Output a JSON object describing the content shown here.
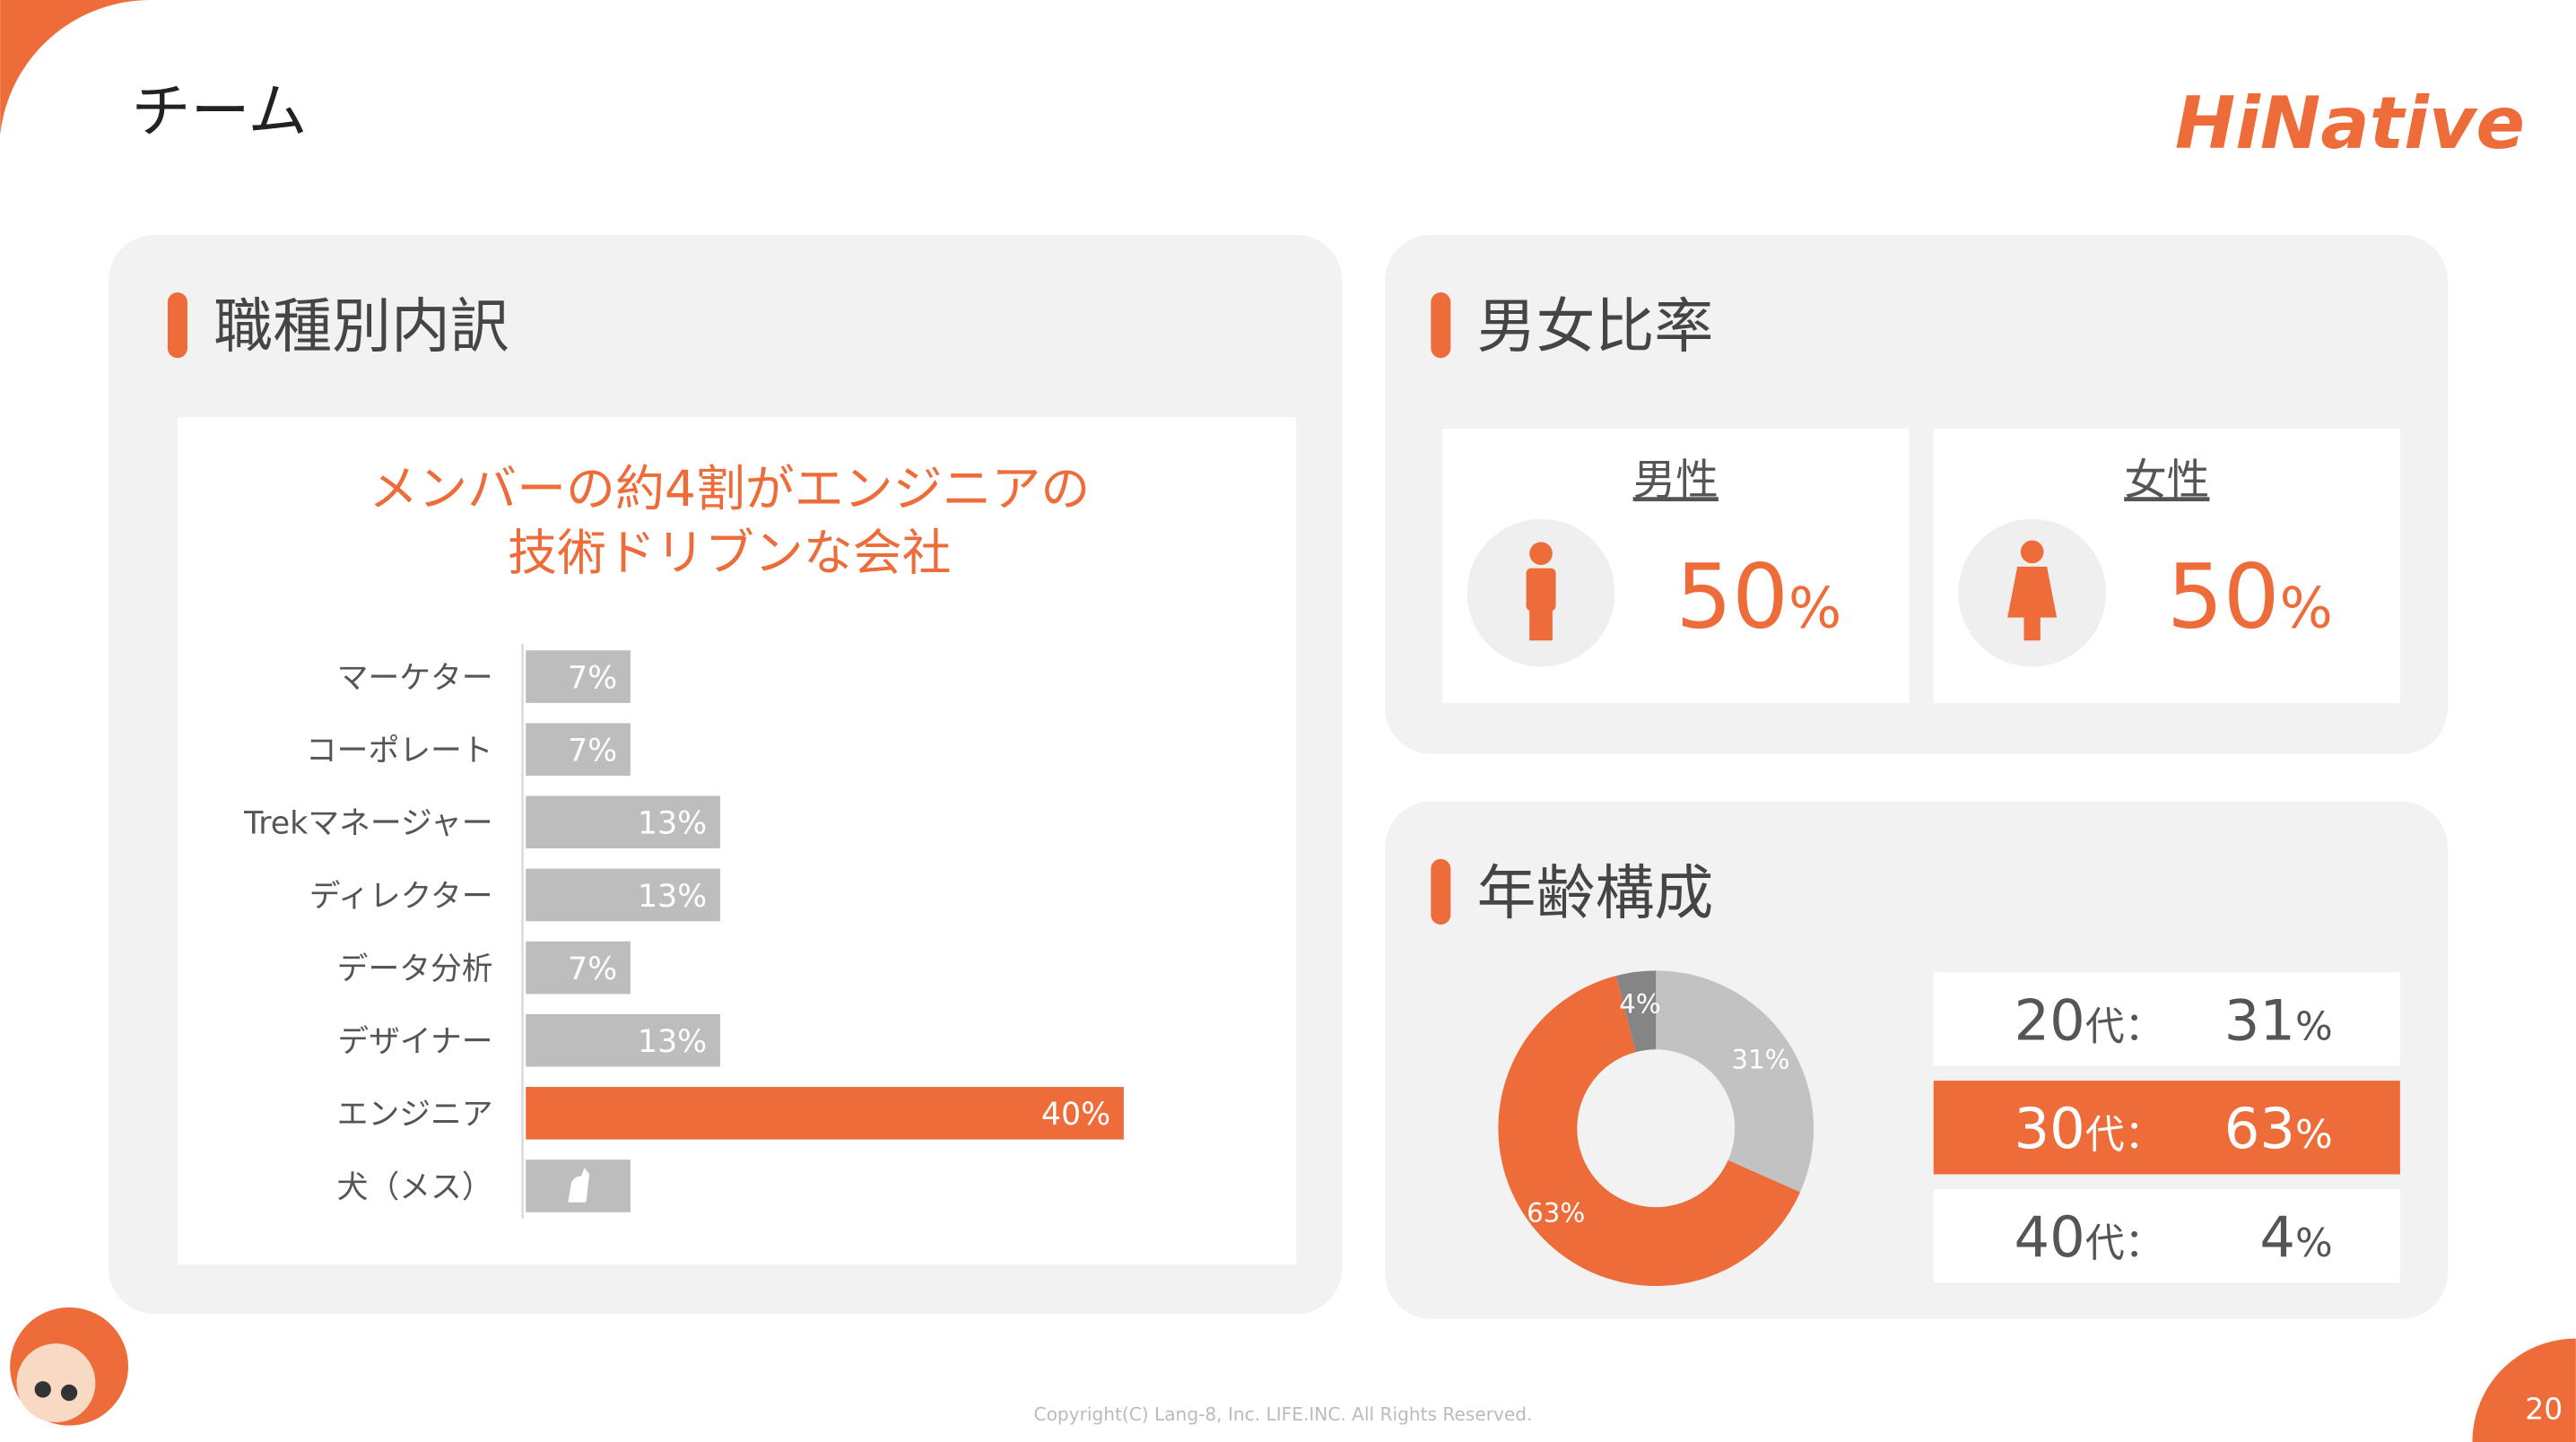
{
  "header": {
    "title": "チーム",
    "logo": "HiNative"
  },
  "sections": {
    "roles": {
      "heading": "職種別内訳"
    },
    "gender": {
      "heading": "男女比率",
      "male": {
        "label": "男性",
        "value": "50",
        "unit": "%"
      },
      "female": {
        "label": "女性",
        "value": "50",
        "unit": "%"
      }
    },
    "age": {
      "heading": "年齢構成",
      "highlighted_row": 1,
      "rows": [
        {
          "age": "20",
          "suffix": "代：",
          "share": "31",
          "unit": "%"
        },
        {
          "age": "30",
          "suffix": "代：",
          "share": "63",
          "unit": "%"
        },
        {
          "age": "40",
          "suffix": "代：",
          "share": "4",
          "unit": "%"
        }
      ]
    }
  },
  "chart_data": [
    {
      "type": "bar",
      "orientation": "horizontal",
      "title": [
        "メンバーの約4割がエンジニアの",
        "技術ドリブンな会社"
      ],
      "categories": [
        "マーケター",
        "コーポレート",
        "Trekマネージャー",
        "ディレクター",
        "データ分析",
        "デザイナー",
        "エンジニア",
        "犬（メス）"
      ],
      "values": [
        7,
        7,
        13,
        13,
        7,
        13,
        40,
        7
      ],
      "value_labels": [
        "7%",
        "7%",
        "13%",
        "13%",
        "7%",
        "13%",
        "40%",
        null
      ],
      "colors": [
        "#bdbdbd",
        "#bdbdbd",
        "#bdbdbd",
        "#bdbdbd",
        "#bdbdbd",
        "#bdbdbd",
        "#ee6c3a",
        "#bdbdbd"
      ]
    },
    {
      "type": "pie",
      "donut": true,
      "values": [
        31,
        63,
        4
      ],
      "value_labels": [
        "31%",
        "63%",
        "4%"
      ],
      "colors": [
        "#c2c2c2",
        "#ee6c3a",
        "#858585"
      ]
    }
  ],
  "footer": {
    "copyright": "Copyright(C) Lang-8, Inc. LIFE.INC. All Rights Reserved.",
    "page": "20"
  }
}
